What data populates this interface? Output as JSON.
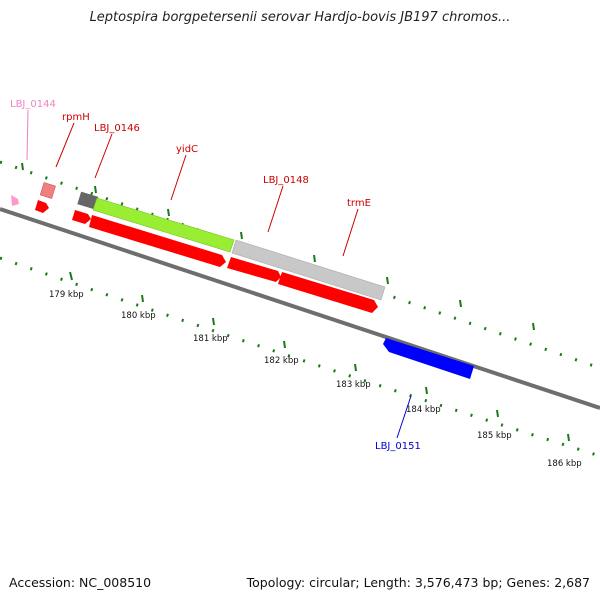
{
  "title": "Leptospira borgpetersenii serovar Hardjo-bovis JB197 chromos...",
  "footer": {
    "accession": "Accession: NC_008510",
    "summary": "Topology: circular; Length: 3,576,473 bp; Genes: 2,687"
  },
  "colors": {
    "backbone": "#808080",
    "tick": "#1a7a1a",
    "cds_red": "#ff0000",
    "label_red": "#cc0000",
    "label_pink": "#ee82c0",
    "label_blue": "#0000cc",
    "blue_gene": "#0000ff",
    "green_gene": "#99ee33",
    "gray_gene": "#c8c8c8",
    "dark_gene": "#666666",
    "salmon_gene": "#f08080",
    "pink_gene": "#ff99cc"
  },
  "scale_labels": [
    {
      "text": "179 kbp"
    },
    {
      "text": "180 kbp"
    },
    {
      "text": "181 kbp"
    },
    {
      "text": "182 kbp"
    },
    {
      "text": "183 kbp"
    },
    {
      "text": "184 kbp"
    },
    {
      "text": "185 kbp"
    },
    {
      "text": "186 kbp"
    }
  ],
  "genes": [
    {
      "name": "LBJ_0144"
    },
    {
      "name": "rpmH"
    },
    {
      "name": "LBJ_0146"
    },
    {
      "name": "yidC"
    },
    {
      "name": "LBJ_0148"
    },
    {
      "name": "trmE"
    },
    {
      "name": "LBJ_0151"
    }
  ]
}
